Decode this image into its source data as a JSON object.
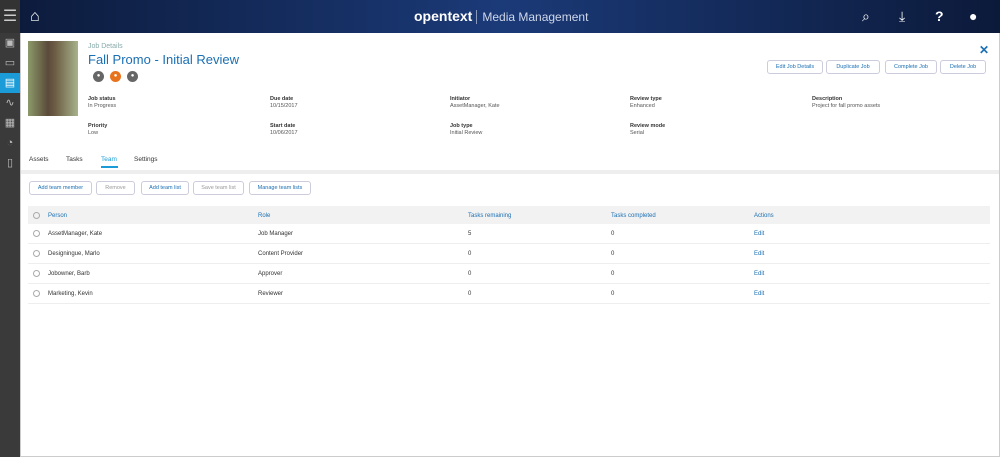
{
  "app": {
    "brand": "opentext",
    "product": "Media Management"
  },
  "job": {
    "breadcrumb": "Job Details",
    "title": "Fall Promo - Initial Review",
    "status_icons": [
      "gray",
      "orange",
      "gray"
    ],
    "fields": [
      {
        "label": "Job status",
        "value": "In Progress"
      },
      {
        "label": "Due date",
        "value": "10/15/2017"
      },
      {
        "label": "Initiator",
        "value": "AssetManager, Kate"
      },
      {
        "label": "Review type",
        "value": "Enhanced"
      },
      {
        "label": "Description",
        "value": "Project for fall promo assets"
      },
      {
        "label": "Priority",
        "value": "Low"
      },
      {
        "label": "Start date",
        "value": "10/06/2017"
      },
      {
        "label": "Job type",
        "value": "Initial Review"
      },
      {
        "label": "Review mode",
        "value": "Serial"
      }
    ],
    "actions": [
      "Edit Job Details",
      "Duplicate Job",
      "Complete Job",
      "Delete Job"
    ]
  },
  "tabs": [
    "Assets",
    "Tasks",
    "Team",
    "Settings"
  ],
  "active_tab": "Team",
  "team_buttons": [
    "Add team member",
    "Remove",
    "Add team list",
    "Save team list",
    "Manage team lists"
  ],
  "table": {
    "headers": [
      "Person",
      "Role",
      "Tasks remaining",
      "Tasks completed",
      "Actions"
    ],
    "rows": [
      [
        "AssetManager, Kate",
        "Job Manager",
        "5",
        "0",
        "Edit"
      ],
      [
        "Designingue, Marlo",
        "Content Provider",
        "0",
        "0",
        "Edit"
      ],
      [
        "Jobowner, Barb",
        "Approver",
        "0",
        "0",
        "Edit"
      ],
      [
        "Marketing, Kevin",
        "Reviewer",
        "0",
        "0",
        "Edit"
      ]
    ]
  },
  "colors": {
    "accent": "#1b6fb3",
    "topbar": "#1b3a78",
    "orange": "#e8731e"
  }
}
